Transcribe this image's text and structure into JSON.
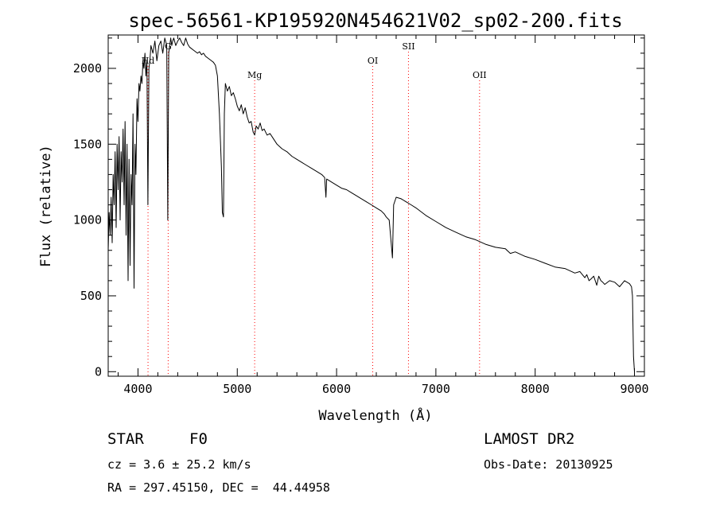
{
  "chart_data": {
    "type": "line",
    "title": "spec-56561-KP195920N454621V02_sp02-200.fits",
    "xlabel": "Wavelength (Å)",
    "ylabel": "Flux (relative)",
    "xlim": [
      3700,
      9100
    ],
    "ylim": [
      -30,
      2220
    ],
    "xticks": [
      4000,
      5000,
      6000,
      7000,
      8000,
      9000
    ],
    "yticks": [
      0,
      500,
      1000,
      1500,
      2000
    ],
    "grid": false,
    "line_color": "#000000",
    "marker_color": "#ff0000",
    "line_markers": [
      {
        "label": "Hd",
        "x": 4101
      },
      {
        "label": "G",
        "x": 4304
      },
      {
        "label": "Mg",
        "x": 5175
      },
      {
        "label": "OI",
        "x": 6364
      },
      {
        "label": "SII",
        "x": 6724
      },
      {
        "label": "OII",
        "x": 7440
      }
    ],
    "series": [
      {
        "x": [
          3700,
          3710,
          3720,
          3730,
          3740,
          3750,
          3760,
          3770,
          3780,
          3790,
          3800,
          3810,
          3820,
          3830,
          3840,
          3850,
          3860,
          3870,
          3880,
          3890,
          3900,
          3910,
          3920,
          3930,
          3940,
          3950,
          3960,
          3970,
          3980,
          3990,
          4000,
          4010,
          4020,
          4030,
          4040,
          4050,
          4060,
          4070,
          4080,
          4090,
          4100,
          4110,
          4120,
          4130,
          4150,
          4170,
          4190,
          4210,
          4230,
          4250,
          4270,
          4290,
          4300,
          4310,
          4330,
          4340,
          4350,
          4360,
          4380,
          4400,
          4420,
          4440,
          4460,
          4480,
          4500,
          4520,
          4540,
          4560,
          4580,
          4600,
          4620,
          4640,
          4660,
          4680,
          4700,
          4720,
          4740,
          4760,
          4780,
          4800,
          4820,
          4840,
          4850,
          4861,
          4870,
          4880,
          4900,
          4920,
          4940,
          4960,
          4980,
          5000,
          5020,
          5040,
          5060,
          5080,
          5100,
          5120,
          5140,
          5160,
          5175,
          5190,
          5210,
          5230,
          5250,
          5270,
          5300,
          5330,
          5360,
          5400,
          5450,
          5500,
          5550,
          5600,
          5650,
          5700,
          5750,
          5800,
          5850,
          5880,
          5893,
          5900,
          5950,
          6000,
          6050,
          6100,
          6150,
          6200,
          6250,
          6300,
          6350,
          6400,
          6450,
          6480,
          6500,
          6530,
          6550,
          6563,
          6575,
          6600,
          6650,
          6700,
          6750,
          6800,
          6900,
          7000,
          7100,
          7200,
          7300,
          7400,
          7500,
          7600,
          7700,
          7750,
          7800,
          7900,
          8000,
          8100,
          8200,
          8300,
          8400,
          8450,
          8500,
          8520,
          8542,
          8560,
          8590,
          8620,
          8640,
          8662,
          8680,
          8700,
          8750,
          8800,
          8850,
          8900,
          8950,
          8970,
          8980,
          8990,
          9000
        ],
        "y": [
          800,
          1050,
          900,
          1150,
          850,
          1300,
          1100,
          1450,
          950,
          1500,
          1200,
          1550,
          1000,
          1450,
          1250,
          1600,
          1100,
          1650,
          900,
          1500,
          600,
          1400,
          700,
          1300,
          1100,
          1700,
          550,
          1500,
          1300,
          1800,
          1650,
          1900,
          1850,
          1950,
          1900,
          2050,
          2000,
          2100,
          1950,
          2050,
          1100,
          2000,
          2050,
          2150,
          2100,
          2180,
          2050,
          2150,
          2180,
          2100,
          2200,
          2150,
          1000,
          2100,
          2200,
          2150,
          2180,
          2200,
          2150,
          2180,
          2200,
          2170,
          2150,
          2200,
          2160,
          2140,
          2130,
          2120,
          2110,
          2100,
          2110,
          2090,
          2100,
          2080,
          2070,
          2060,
          2050,
          2040,
          2020,
          1950,
          1700,
          1350,
          1050,
          1020,
          1700,
          1900,
          1850,
          1880,
          1820,
          1840,
          1800,
          1750,
          1720,
          1760,
          1700,
          1740,
          1680,
          1640,
          1650,
          1580,
          1560,
          1620,
          1600,
          1640,
          1590,
          1600,
          1560,
          1570,
          1540,
          1500,
          1470,
          1450,
          1420,
          1400,
          1380,
          1360,
          1340,
          1320,
          1300,
          1280,
          1150,
          1270,
          1250,
          1230,
          1210,
          1200,
          1180,
          1160,
          1140,
          1120,
          1100,
          1080,
          1060,
          1040,
          1020,
          1000,
          850,
          750,
          1100,
          1150,
          1140,
          1120,
          1100,
          1080,
          1030,
          990,
          950,
          920,
          890,
          870,
          840,
          820,
          810,
          780,
          790,
          760,
          740,
          715,
          690,
          680,
          650,
          660,
          620,
          640,
          600,
          610,
          630,
          570,
          630,
          600,
          590,
          575,
          600,
          590,
          560,
          600,
          580,
          560,
          500,
          100,
          0
        ]
      }
    ],
    "annotations": {
      "object_class": "STAR",
      "subclass": "F0",
      "survey": "LAMOST DR2",
      "redshift": "cz = 3.6 ± 25.2 km/s",
      "obs_date": "Obs-Date: 20130925",
      "coords": "RA = 297.45150, DEC =  44.44958"
    }
  }
}
